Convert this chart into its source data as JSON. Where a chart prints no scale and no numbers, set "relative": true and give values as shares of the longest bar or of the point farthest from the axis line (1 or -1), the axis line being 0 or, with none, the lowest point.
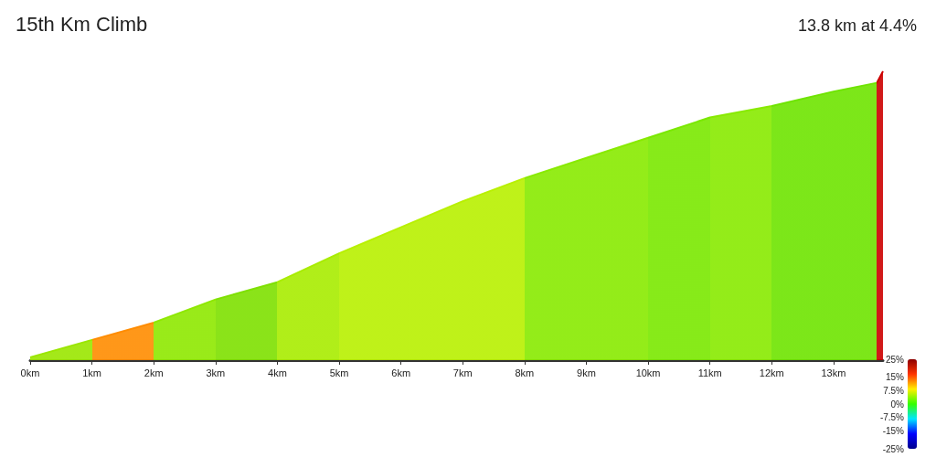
{
  "chart_data": {
    "type": "area",
    "title": "15th Km Climb",
    "subtitle": "13.8 km at 4.4%",
    "relative": true,
    "x": [
      0,
      1,
      2,
      3,
      4,
      5,
      6,
      7,
      8,
      9,
      10,
      11,
      12,
      13,
      13.7,
      13.8
    ],
    "values": [
      0.01,
      0.07,
      0.13,
      0.21,
      0.27,
      0.37,
      0.46,
      0.55,
      0.63,
      0.7,
      0.77,
      0.84,
      0.88,
      0.93,
      0.96,
      1
    ],
    "colors": [
      "#7fe000",
      "#9ae600",
      "#ff8c00",
      "#8ee800",
      "#7ee000",
      "#a8ec00",
      "#b8f000",
      "#b8f000",
      "#b8f000",
      "#88ea00",
      "#88ea00",
      "#7ae800",
      "#88ea00",
      "#6ee400",
      "#6ee400",
      "#cc0000"
    ],
    "clim": [
      -25,
      25
    ],
    "cticks": [
      {
        "value": 25,
        "label": "25%"
      },
      {
        "value": 15,
        "label": "15%"
      },
      {
        "value": 7.5,
        "label": "7.5%"
      },
      {
        "value": 0,
        "label": "0%"
      },
      {
        "value": -7.5,
        "label": "-7.5%"
      },
      {
        "value": -15,
        "label": "-15%"
      },
      {
        "value": -25,
        "label": "-25%"
      }
    ],
    "xlim": [
      0,
      13.8
    ],
    "xticks": [
      {
        "value": 0,
        "label": "0km"
      },
      {
        "value": 1,
        "label": "1km"
      },
      {
        "value": 2,
        "label": "2km"
      },
      {
        "value": 3,
        "label": "3km"
      },
      {
        "value": 4,
        "label": "4km"
      },
      {
        "value": 5,
        "label": "5km"
      },
      {
        "value": 6,
        "label": "6km"
      },
      {
        "value": 7,
        "label": "7km"
      },
      {
        "value": 8,
        "label": "8km"
      },
      {
        "value": 9,
        "label": "9km"
      },
      {
        "value": 10,
        "label": "10km"
      },
      {
        "value": 11,
        "label": "11km"
      },
      {
        "value": 12,
        "label": "12km"
      },
      {
        "value": 13,
        "label": "13km"
      }
    ],
    "grid": false
  }
}
